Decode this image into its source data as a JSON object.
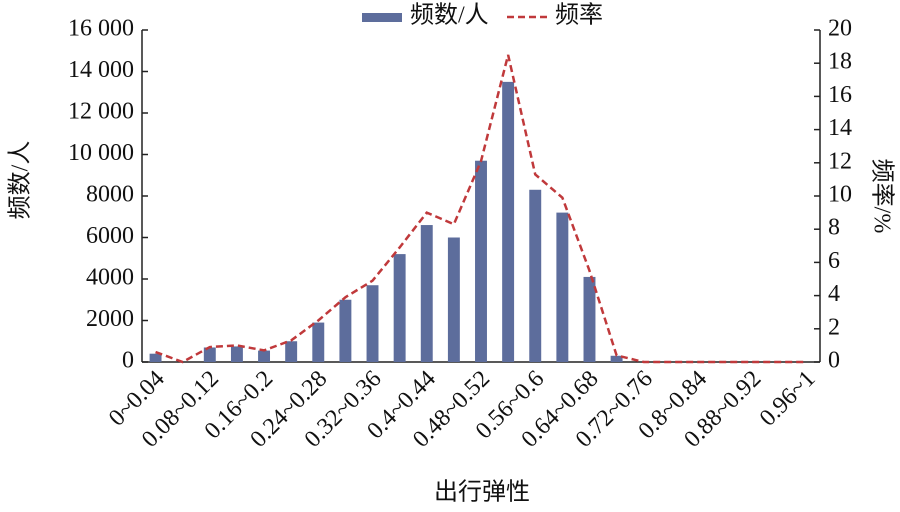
{
  "chart_data": {
    "type": "bar",
    "categories": [
      "0~0.04",
      null,
      "0.08~0.12",
      null,
      "0.16~0.2",
      null,
      "0.24~0.28",
      null,
      "0.32~0.36",
      null,
      "0.4~0.44",
      null,
      "0.48~0.52",
      null,
      "0.56~0.6",
      null,
      "0.64~0.68",
      null,
      "0.72~0.76",
      null,
      "0.8~0.84",
      null,
      "0.88~0.92",
      null,
      "0.96~1"
    ],
    "series": [
      {
        "name": "频数/人",
        "type": "bar",
        "color": "#5d6d9c",
        "values": [
          400,
          0,
          700,
          750,
          550,
          1000,
          1900,
          3000,
          3700,
          5200,
          6600,
          6000,
          9700,
          13500,
          8300,
          7200,
          4100,
          300,
          0,
          0,
          0,
          0,
          0,
          0,
          0
        ]
      },
      {
        "name": "频率",
        "type": "line",
        "axis": "y2",
        "color": "#c0393b",
        "values": [
          0.6,
          0,
          0.9,
          1.0,
          0.7,
          1.3,
          2.5,
          3.9,
          4.9,
          6.9,
          9.0,
          8.3,
          12.1,
          18.5,
          11.3,
          9.9,
          5.5,
          0.4,
          0,
          0,
          0,
          0,
          0,
          0,
          0
        ]
      }
    ],
    "x_label": "出行弹性",
    "y_label": "频数/人",
    "y2_label": "频率/%",
    "ylim": [
      0,
      16000
    ],
    "yticks": [
      0,
      2000,
      4000,
      6000,
      8000,
      {
        "value": 10000,
        "label": "10 000"
      },
      {
        "value": 12000,
        "label": "12 000"
      },
      {
        "value": 14000,
        "label": "14 000"
      },
      {
        "value": 16000,
        "label": "16 000"
      }
    ],
    "y2lim": [
      0,
      20
    ],
    "y2ticks": [
      0,
      2,
      4,
      6,
      8,
      10,
      12,
      14,
      16,
      18,
      20
    ],
    "legend": "top"
  }
}
